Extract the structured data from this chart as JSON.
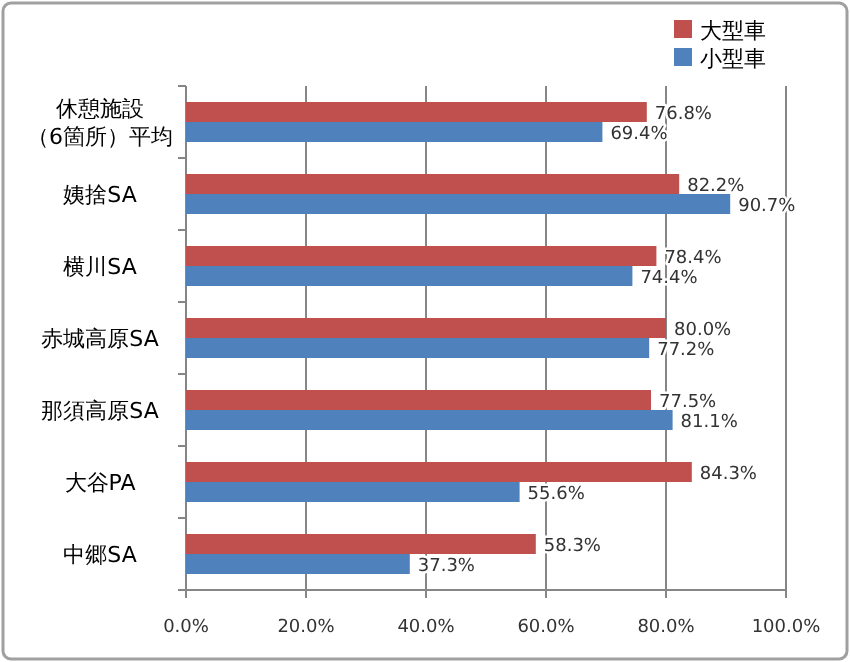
{
  "chart_data": {
    "type": "bar",
    "orientation": "horizontal",
    "categories": [
      "休憩施設（6箇所）平均",
      "姨捨SA",
      "横川SA",
      "赤城高原SA",
      "那須高原SA",
      "大谷PA",
      "中郷SA"
    ],
    "series": [
      {
        "name": "大型車",
        "color": "#c0504d",
        "values": [
          76.8,
          82.2,
          78.4,
          80.0,
          77.5,
          84.3,
          58.3
        ],
        "value_labels": [
          "76.8%",
          "82.2%",
          "78.4%",
          "80.0%",
          "77.5%",
          "84.3%",
          "58.3%"
        ]
      },
      {
        "name": "小型車",
        "color": "#4f81bd",
        "values": [
          69.4,
          90.7,
          74.4,
          77.2,
          81.1,
          55.6,
          37.3
        ],
        "value_labels": [
          "69.4%",
          "90.7%",
          "74.4%",
          "77.2%",
          "81.1%",
          "55.6%",
          "37.3%"
        ]
      }
    ],
    "xlim": [
      0,
      100
    ],
    "xticks": [
      {
        "value": 0,
        "label": "0.0%"
      },
      {
        "value": 20,
        "label": "20.0%"
      },
      {
        "value": 40,
        "label": "40.0%"
      },
      {
        "value": 60,
        "label": "60.0%"
      },
      {
        "value": 80,
        "label": "80.0%"
      },
      {
        "value": 100,
        "label": "100.0%"
      }
    ],
    "grid": "x",
    "legend": "top right"
  }
}
